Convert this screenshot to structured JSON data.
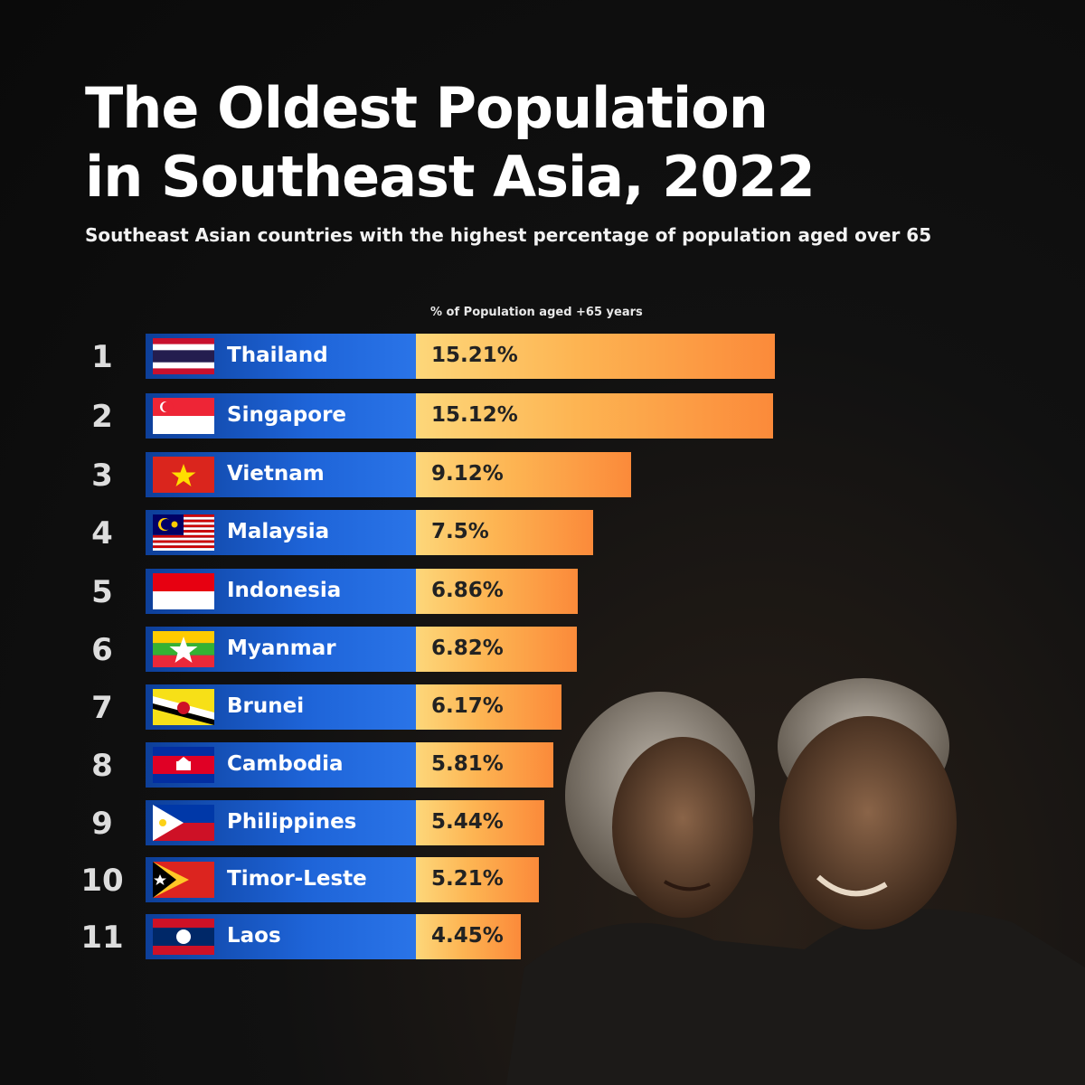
{
  "header": {
    "title_line1": "The Oldest Population",
    "title_line2": "in Southeast Asia, 2022",
    "subtitle": "Southeast Asian countries with the highest percentage of population aged over 65"
  },
  "chart_data": {
    "type": "bar",
    "orientation": "horizontal",
    "title": "The Oldest Population in Southeast Asia, 2022",
    "subtitle": "Southeast Asian countries with the highest percentage of population aged over 65",
    "xlabel": "% of Population aged +65 years",
    "ylabel": "",
    "categories": [
      "Thailand",
      "Singapore",
      "Vietnam",
      "Malaysia",
      "Indonesia",
      "Myanmar",
      "Brunei",
      "Cambodia",
      "Philippines",
      "Timor-Leste",
      "Laos"
    ],
    "ranks": [
      "1",
      "2",
      "3",
      "4",
      "5",
      "6",
      "7",
      "8",
      "9",
      "10",
      "11"
    ],
    "values": [
      15.21,
      15.12,
      9.12,
      7.5,
      6.86,
      6.82,
      6.17,
      5.81,
      5.44,
      5.21,
      4.45
    ],
    "value_labels": [
      "15.21%",
      "15.12%",
      "9.12%",
      "7.5%",
      "6.86%",
      "6.82%",
      "6.17%",
      "5.81%",
      "5.44%",
      "5.21%",
      "4.45%"
    ],
    "xlim": [
      0,
      15.21
    ],
    "grid": false,
    "legend": "none",
    "colors": {
      "label_box": "#1e64d8",
      "bar_start": "#fdd77a",
      "bar_end": "#fb8a3a"
    }
  }
}
